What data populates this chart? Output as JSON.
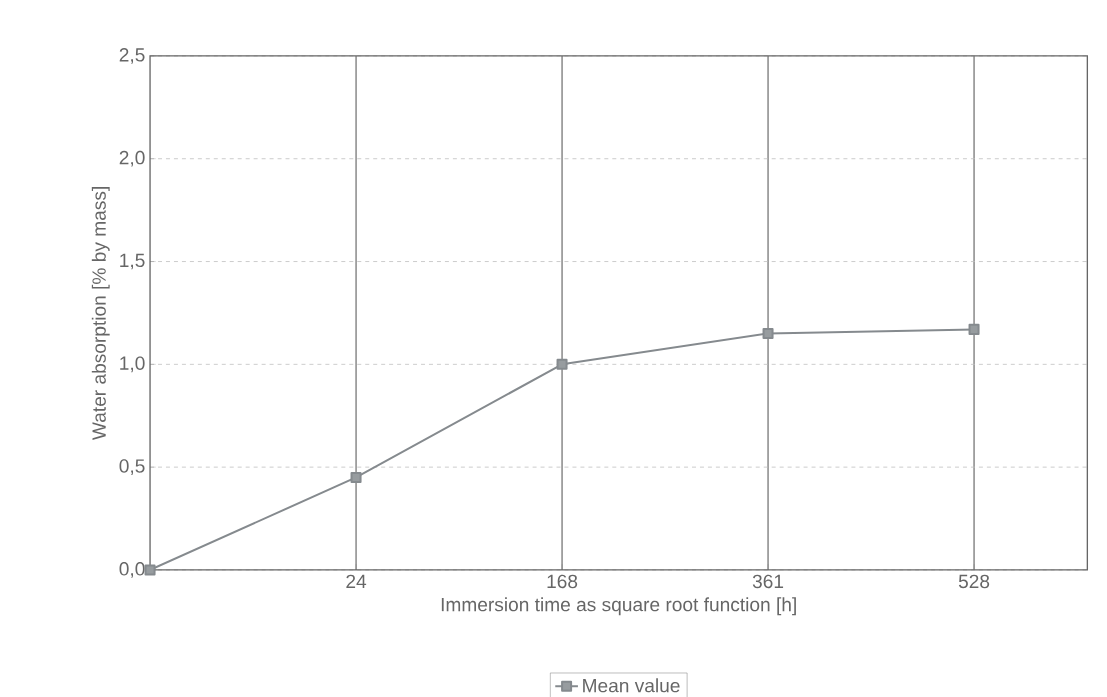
{
  "chart_data": {
    "type": "line",
    "xlabel": "Immersion time as square root function [h]",
    "ylabel": "Water absorption [% by mass]",
    "categories": [
      null,
      "24",
      "168",
      "361",
      "528"
    ],
    "series": [
      {
        "name": "Mean value",
        "color": "#858a8e",
        "values": [
          0.0,
          0.45,
          1.0,
          1.15,
          1.17
        ]
      }
    ],
    "ylim": [
      0,
      2.5
    ],
    "yticks": [
      {
        "value": 0,
        "label": "0,0"
      },
      {
        "value": 0.5,
        "label": "0,5"
      },
      {
        "value": 1,
        "label": "1,0"
      },
      {
        "value": 1.5,
        "label": "1,5"
      },
      {
        "value": 2,
        "label": "2,0"
      },
      {
        "value": 2.5,
        "label": "2,5"
      }
    ],
    "grid": true,
    "legend": "bottom",
    "marker": "square",
    "line_style": "solid"
  }
}
